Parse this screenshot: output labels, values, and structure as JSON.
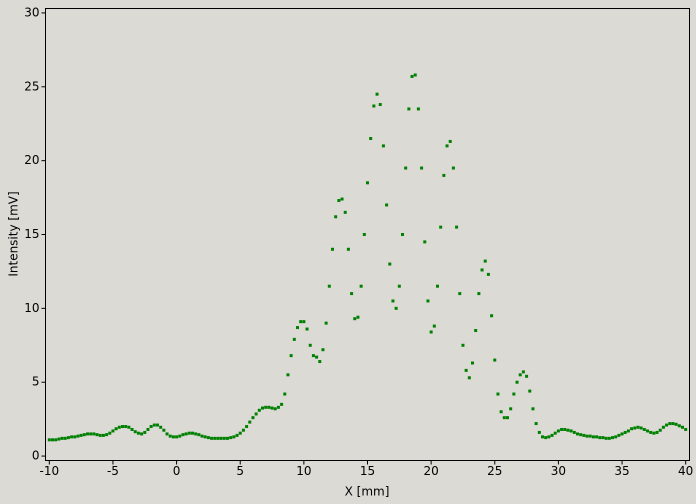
{
  "chart_data": {
    "type": "scatter",
    "xlabel": "X [mm]",
    "ylabel": "Intensity [mV]",
    "xlim": [
      -10.3,
      40.3
    ],
    "ylim": [
      -0.3,
      30.3
    ],
    "xticks": [
      -10,
      -5,
      0,
      5,
      10,
      15,
      20,
      25,
      30,
      35,
      40
    ],
    "yticks": [
      0,
      5,
      10,
      15,
      20,
      25,
      30
    ],
    "color": "#008000",
    "x": [
      -10,
      -9.75,
      -9.5,
      -9.25,
      -9,
      -8.75,
      -8.5,
      -8.25,
      -8,
      -7.75,
      -7.5,
      -7.25,
      -7,
      -6.75,
      -6.5,
      -6.25,
      -6,
      -5.75,
      -5.5,
      -5.25,
      -5,
      -4.75,
      -4.5,
      -4.25,
      -4,
      -3.75,
      -3.5,
      -3.25,
      -3,
      -2.75,
      -2.5,
      -2.25,
      -2,
      -1.75,
      -1.5,
      -1.25,
      -1,
      -0.75,
      -0.5,
      -0.25,
      0,
      0.25,
      0.5,
      0.75,
      1,
      1.25,
      1.5,
      1.75,
      2,
      2.25,
      2.5,
      2.75,
      3,
      3.25,
      3.5,
      3.75,
      4,
      4.25,
      4.5,
      4.75,
      5,
      5.25,
      5.5,
      5.75,
      6,
      6.25,
      6.5,
      6.75,
      7,
      7.25,
      7.5,
      7.75,
      8,
      8.25,
      8.5,
      8.75,
      9,
      9.25,
      9.5,
      9.75,
      10,
      10.25,
      10.5,
      10.75,
      11,
      11.25,
      11.5,
      11.75,
      12,
      12.25,
      12.5,
      12.75,
      13,
      13.25,
      13.5,
      13.75,
      14,
      14.25,
      14.5,
      14.75,
      15,
      15.25,
      15.5,
      15.75,
      16,
      16.25,
      16.5,
      16.75,
      17,
      17.25,
      17.5,
      17.75,
      18,
      18.25,
      18.5,
      18.75,
      19,
      19.25,
      19.5,
      19.75,
      20,
      20.25,
      20.5,
      20.75,
      21,
      21.25,
      21.5,
      21.75,
      22,
      22.25,
      22.5,
      22.75,
      23,
      23.25,
      23.5,
      23.75,
      24,
      24.25,
      24.5,
      24.75,
      25,
      25.25,
      25.5,
      25.75,
      26,
      26.25,
      26.5,
      26.75,
      27,
      27.25,
      27.5,
      27.75,
      28,
      28.25,
      28.5,
      28.75,
      29,
      29.25,
      29.5,
      29.75,
      30,
      30.25,
      30.5,
      30.75,
      31,
      31.25,
      31.5,
      31.75,
      32,
      32.25,
      32.5,
      32.75,
      33,
      33.25,
      33.5,
      33.75,
      34,
      34.25,
      34.5,
      34.75,
      35,
      35.25,
      35.5,
      35.75,
      36,
      36.25,
      36.5,
      36.75,
      37,
      37.25,
      37.5,
      37.75,
      38,
      38.25,
      38.5,
      38.75,
      39,
      39.25,
      39.5,
      39.75,
      40
    ],
    "values": [
      1.1,
      1.1,
      1.1,
      1.15,
      1.2,
      1.2,
      1.25,
      1.3,
      1.3,
      1.35,
      1.4,
      1.45,
      1.5,
      1.5,
      1.5,
      1.45,
      1.4,
      1.4,
      1.45,
      1.55,
      1.7,
      1.85,
      1.95,
      2.0,
      2.0,
      1.95,
      1.8,
      1.65,
      1.55,
      1.5,
      1.6,
      1.8,
      2.0,
      2.1,
      2.1,
      1.95,
      1.75,
      1.5,
      1.35,
      1.3,
      1.3,
      1.35,
      1.45,
      1.5,
      1.55,
      1.55,
      1.5,
      1.45,
      1.35,
      1.3,
      1.25,
      1.2,
      1.2,
      1.2,
      1.2,
      1.2,
      1.2,
      1.25,
      1.3,
      1.4,
      1.55,
      1.75,
      2.0,
      2.3,
      2.6,
      2.85,
      3.1,
      3.25,
      3.3,
      3.3,
      3.25,
      3.2,
      3.3,
      3.5,
      4.2,
      5.5,
      6.8,
      7.9,
      8.7,
      9.1,
      9.1,
      8.6,
      7.5,
      6.8,
      6.7,
      6.4,
      7.2,
      9.0,
      11.5,
      14.0,
      16.2,
      17.3,
      17.4,
      16.5,
      14.0,
      11.0,
      9.3,
      9.4,
      11.5,
      15.0,
      18.5,
      21.5,
      23.7,
      24.5,
      23.8,
      21.0,
      17.0,
      13.0,
      10.5,
      10.0,
      11.5,
      15.0,
      19.5,
      23.5,
      25.7,
      25.8,
      23.5,
      19.5,
      14.5,
      10.5,
      8.4,
      8.8,
      11.5,
      15.5,
      19.0,
      21.0,
      21.3,
      19.5,
      15.5,
      11.0,
      7.5,
      5.8,
      5.3,
      6.3,
      8.5,
      11.0,
      12.6,
      13.2,
      12.3,
      9.5,
      6.5,
      4.2,
      3.0,
      2.6,
      2.6,
      3.2,
      4.2,
      5.0,
      5.5,
      5.7,
      5.4,
      4.4,
      3.2,
      2.2,
      1.6,
      1.3,
      1.25,
      1.3,
      1.4,
      1.55,
      1.7,
      1.8,
      1.8,
      1.75,
      1.7,
      1.6,
      1.5,
      1.45,
      1.4,
      1.35,
      1.35,
      1.3,
      1.3,
      1.25,
      1.25,
      1.2,
      1.2,
      1.25,
      1.3,
      1.4,
      1.5,
      1.6,
      1.7,
      1.85,
      1.9,
      1.95,
      1.9,
      1.8,
      1.7,
      1.6,
      1.55,
      1.6,
      1.75,
      1.95,
      2.1,
      2.2,
      2.2,
      2.15,
      2.05,
      1.95,
      1.8
    ]
  }
}
